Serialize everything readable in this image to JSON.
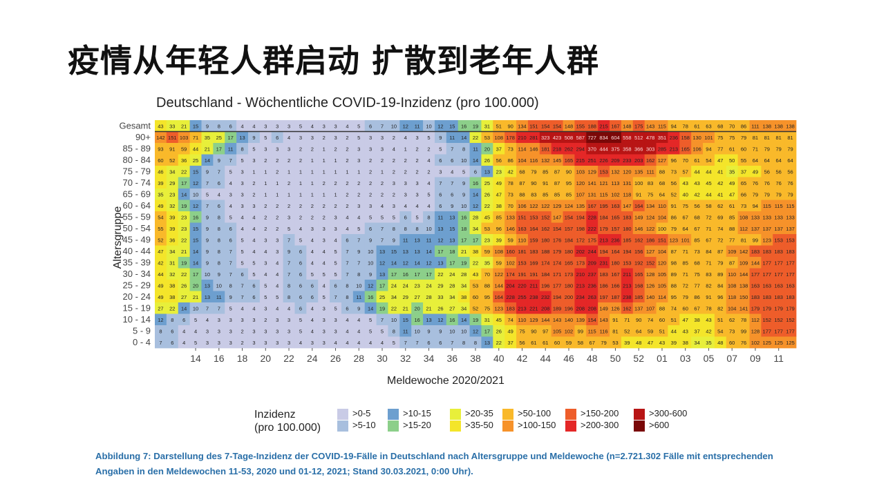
{
  "headline": "疫情从年轻人群启动 扩散到老年人群",
  "caption": "Abbildung 7: Darstellung des 7-Tage-Inzidenz der COVID-19-Fälle in Deutschland nach Altersgruppe und Meldewoche (n=2.721.302 Fälle mit entsprechenden Angaben in den Meldewochen 11-53, 2020 und 01-12, 2021; Stand 30.03.2021, 0:00 Uhr).",
  "legend": {
    "title_line1": "Inzidenz",
    "title_line2": "(pro 100.000)",
    "items": [
      {
        "label": ">0-5",
        "color": "#c9cbe6"
      },
      {
        "label": ">5-10",
        "color": "#a8bfde"
      },
      {
        "label": ">10-15",
        "color": "#6d9fcf"
      },
      {
        "label": ">15-20",
        "color": "#8ccf8a"
      },
      {
        "label": ">20-35",
        "color": "#e8ef3a"
      },
      {
        "label": ">35-50",
        "color": "#f4e52a"
      },
      {
        "label": ">50-100",
        "color": "#f9b92a"
      },
      {
        "label": ">100-150",
        "color": "#f6922a"
      },
      {
        "label": ">150-200",
        "color": "#ee5d2a"
      },
      {
        "label": ">200-300",
        "color": "#e42727"
      },
      {
        "label": ">300-600",
        "color": "#b81515"
      },
      {
        "label": ">600",
        "color": "#7a0808"
      }
    ]
  },
  "chart_data": {
    "type": "heatmap",
    "title": "Deutschland - Wöchentliche COVID-19-Inzidenz (pro 100.000)",
    "xlabel": "Meldewoche 2020/2021",
    "ylabel": "Altersgruppe",
    "x_tick_labels": [
      "14",
      "16",
      "18",
      "20",
      "22",
      "24",
      "26",
      "28",
      "30",
      "32",
      "34",
      "36",
      "38",
      "40",
      "42",
      "44",
      "46",
      "48",
      "50",
      "52",
      "01",
      "03",
      "05",
      "07",
      "09",
      "11"
    ],
    "weeks": [
      "11",
      "12",
      "13",
      "14",
      "15",
      "16",
      "17",
      "18",
      "19",
      "20",
      "21",
      "22",
      "23",
      "24",
      "25",
      "26",
      "27",
      "28",
      "29",
      "30",
      "31",
      "32",
      "33",
      "34",
      "35",
      "36",
      "37",
      "38",
      "39",
      "40",
      "41",
      "42",
      "43",
      "44",
      "45",
      "46",
      "47",
      "48",
      "49",
      "50",
      "51",
      "52",
      "53",
      "01",
      "02",
      "03",
      "04",
      "05",
      "06",
      "07",
      "08",
      "09",
      "10",
      "11",
      "12"
    ],
    "rows": [
      {
        "label": "Gesamt",
        "values": [
          43,
          33,
          21,
          15,
          9,
          8,
          6,
          4,
          4,
          3,
          3,
          3,
          5,
          4,
          3,
          3,
          4,
          5,
          6,
          7,
          10,
          12,
          11,
          10,
          12,
          15,
          16,
          19,
          31,
          51,
          90,
          134,
          151,
          154,
          154,
          148,
          155,
          188,
          215,
          167,
          148,
          175,
          143,
          115,
          94,
          78,
          61,
          63,
          68,
          70,
          86,
          111,
          138,
          138,
          138
        ]
      },
      {
        "label": "90+",
        "values": [
          142,
          151,
          103,
          71,
          35,
          25,
          17,
          13,
          9,
          5,
          6,
          4,
          3,
          3,
          2,
          3,
          2,
          5,
          3,
          3,
          2,
          4,
          3,
          5,
          9,
          11,
          14,
          22,
          53,
          108,
          178,
          210,
          281,
          323,
          423,
          508,
          587,
          727,
          834,
          604,
          558,
          512,
          478,
          351,
          236,
          158,
          130,
          101,
          75,
          75,
          79,
          81,
          81,
          81,
          81
        ]
      },
      {
        "label": "85 - 89",
        "values": [
          93,
          91,
          59,
          44,
          21,
          17,
          11,
          8,
          5,
          3,
          3,
          3,
          2,
          2,
          1,
          2,
          2,
          3,
          3,
          3,
          4,
          1,
          2,
          2,
          5,
          7,
          8,
          11,
          20,
          37,
          73,
          114,
          146,
          181,
          218,
          262,
          294,
          370,
          444,
          375,
          358,
          366,
          303,
          285,
          213,
          165,
          106,
          94,
          77,
          61,
          60,
          71,
          79,
          79,
          79
        ]
      },
      {
        "label": "80 - 84",
        "values": [
          60,
          52,
          36,
          25,
          14,
          9,
          7,
          5,
          3,
          2,
          2,
          2,
          2,
          1,
          1,
          1,
          2,
          3,
          2,
          2,
          2,
          2,
          2,
          4,
          6,
          6,
          10,
          14,
          26,
          56,
          86,
          104,
          116,
          132,
          145,
          165,
          215,
          251,
          226,
          209,
          233,
          203,
          162,
          127,
          96,
          70,
          61,
          54,
          47,
          50,
          55,
          64,
          64,
          64,
          64
        ]
      },
      {
        "label": "75 - 79",
        "values": [
          46,
          34,
          22,
          15,
          9,
          7,
          5,
          3,
          1,
          1,
          2,
          1,
          1,
          1,
          1,
          1,
          1,
          1,
          2,
          1,
          2,
          2,
          2,
          2,
          3,
          4,
          5,
          6,
          13,
          23,
          42,
          68,
          79,
          85,
          87,
          90,
          103,
          129,
          153,
          132,
          120,
          135,
          111,
          88,
          73,
          57,
          44,
          44,
          41,
          35,
          37,
          49,
          56,
          56,
          56
        ]
      },
      {
        "label": "70 - 74",
        "values": [
          39,
          29,
          17,
          12,
          7,
          6,
          4,
          3,
          2,
          1,
          1,
          2,
          1,
          1,
          2,
          2,
          2,
          2,
          2,
          2,
          3,
          3,
          3,
          4,
          7,
          7,
          9,
          16,
          25,
          49,
          78,
          87,
          90,
          91,
          87,
          95,
          120,
          141,
          121,
          113,
          131,
          100,
          83,
          68,
          56,
          43,
          43,
          45,
          42,
          49,
          65,
          76,
          76,
          76,
          76
        ]
      },
      {
        "label": "65 - 69",
        "values": [
          35,
          23,
          14,
          10,
          5,
          4,
          3,
          3,
          2,
          1,
          1,
          1,
          1,
          1,
          1,
          1,
          2,
          2,
          2,
          2,
          2,
          3,
          3,
          5,
          6,
          6,
          9,
          14,
          26,
          47,
          73,
          88,
          83,
          85,
          85,
          85,
          107,
          131,
          115,
          102,
          118,
          91,
          75,
          64,
          52,
          40,
          42,
          44,
          41,
          47,
          66,
          79,
          79,
          79,
          79
        ]
      },
      {
        "label": "60 - 64",
        "values": [
          49,
          32,
          19,
          12,
          7,
          6,
          4,
          3,
          3,
          2,
          2,
          2,
          2,
          2,
          2,
          2,
          2,
          3,
          3,
          4,
          3,
          4,
          4,
          4,
          6,
          9,
          10,
          12,
          22,
          38,
          70,
          106,
          122,
          122,
          129,
          124,
          135,
          167,
          195,
          163,
          147,
          164,
          134,
          110,
          91,
          75,
          56,
          58,
          62,
          61,
          73,
          94,
          115,
          115,
          115
        ]
      },
      {
        "label": "55 - 59",
        "values": [
          54,
          39,
          23,
          16,
          9,
          8,
          5,
          4,
          4,
          2,
          2,
          3,
          2,
          2,
          2,
          3,
          4,
          4,
          5,
          5,
          5,
          6,
          5,
          8,
          11,
          13,
          16,
          28,
          45,
          85,
          133,
          151,
          153,
          152,
          147,
          154,
          194,
          228,
          184,
          165,
          183,
          149,
          124,
          104,
          86,
          67,
          68,
          72,
          69,
          85,
          108,
          133,
          133,
          133,
          133
        ]
      },
      {
        "label": "50 - 54",
        "values": [
          55,
          39,
          23,
          15,
          9,
          8,
          6,
          4,
          4,
          2,
          2,
          5,
          4,
          3,
          3,
          3,
          4,
          5,
          6,
          7,
          8,
          8,
          8,
          10,
          13,
          15,
          18,
          34,
          53,
          96,
          146,
          163,
          164,
          162,
          154,
          157,
          198,
          222,
          179,
          157,
          180,
          146,
          122,
          100,
          79,
          64,
          67,
          71,
          74,
          88,
          112,
          137,
          137,
          137,
          137
        ]
      },
      {
        "label": "45 - 49",
        "values": [
          52,
          36,
          22,
          15,
          9,
          8,
          6,
          5,
          4,
          3,
          3,
          7,
          5,
          4,
          3,
          4,
          6,
          7,
          9,
          7,
          9,
          11,
          13,
          11,
          12,
          13,
          17,
          17,
          23,
          39,
          59,
          110,
          159,
          180,
          176,
          184,
          172,
          175,
          213,
          236,
          185,
          162,
          186,
          151,
          123,
          101,
          85,
          67,
          72,
          77,
          81,
          99,
          123,
          153,
          153
        ]
      },
      {
        "label": "40 - 44",
        "values": [
          47,
          34,
          21,
          14,
          9,
          8,
          7,
          5,
          4,
          4,
          3,
          9,
          6,
          4,
          4,
          5,
          7,
          9,
          10,
          13,
          15,
          13,
          13,
          14,
          17,
          18,
          21,
          38,
          59,
          108,
          160,
          181,
          183,
          188,
          179,
          180,
          202,
          244,
          194,
          164,
          194,
          156,
          127,
          104,
          87,
          71,
          73,
          84,
          87,
          109,
          142,
          183,
          183,
          183,
          183
        ]
      },
      {
        "label": "35 - 39",
        "values": [
          42,
          31,
          19,
          14,
          9,
          8,
          7,
          5,
          5,
          3,
          4,
          7,
          6,
          4,
          4,
          5,
          7,
          7,
          10,
          12,
          14,
          12,
          14,
          12,
          13,
          17,
          19,
          22,
          35,
          59,
          102,
          153,
          169,
          174,
          174,
          165,
          173,
          209,
          231,
          180,
          153,
          192,
          152,
          120,
          98,
          85,
          68,
          71,
          79,
          87,
          109,
          144,
          177,
          177,
          177
        ]
      },
      {
        "label": "30 - 34",
        "values": [
          44,
          32,
          22,
          17,
          10,
          9,
          7,
          6,
          5,
          4,
          4,
          7,
          6,
          5,
          5,
          5,
          7,
          8,
          9,
          13,
          17,
          16,
          17,
          17,
          22,
          24,
          28,
          43,
          70,
          122,
          174,
          191,
          191,
          184,
          171,
          173,
          210,
          237,
          183,
          167,
          211,
          165,
          128,
          105,
          89,
          71,
          75,
          83,
          89,
          110,
          144,
          177,
          177,
          177,
          177
        ]
      },
      {
        "label": "25 - 29",
        "values": [
          49,
          38,
          26,
          20,
          13,
          10,
          8,
          7,
          6,
          5,
          4,
          8,
          6,
          6,
          4,
          6,
          8,
          10,
          12,
          17,
          24,
          24,
          23,
          24,
          29,
          28,
          34,
          53,
          88,
          144,
          204,
          220,
          211,
          196,
          177,
          180,
          213,
          236,
          186,
          166,
          213,
          168,
          126,
          105,
          88,
          72,
          77,
          82,
          84,
          108,
          138,
          163,
          163,
          163,
          163
        ]
      },
      {
        "label": "20 - 24",
        "values": [
          49,
          38,
          27,
          21,
          13,
          11,
          9,
          7,
          6,
          5,
          5,
          8,
          6,
          6,
          5,
          7,
          8,
          11,
          16,
          25,
          34,
          29,
          27,
          28,
          33,
          34,
          38,
          60,
          95,
          164,
          228,
          255,
          238,
          232,
          194,
          200,
          234,
          263,
          197,
          187,
          238,
          185,
          140,
          114,
          95,
          79,
          86,
          91,
          96,
          118,
          150,
          183,
          183,
          183,
          183
        ]
      },
      {
        "label": "15 - 19",
        "values": [
          27,
          22,
          14,
          10,
          7,
          7,
          5,
          4,
          4,
          3,
          4,
          4,
          6,
          4,
          3,
          5,
          6,
          9,
          14,
          19,
          22,
          21,
          20,
          21,
          26,
          27,
          34,
          52,
          75,
          123,
          183,
          213,
          221,
          208,
          189,
          196,
          208,
          208,
          149,
          126,
          162,
          137,
          107,
          88,
          74,
          60,
          67,
          78,
          82,
          104,
          141,
          179,
          179,
          179,
          179
        ]
      },
      {
        "label": "10 - 14",
        "values": [
          12,
          8,
          6,
          5,
          4,
          3,
          3,
          3,
          3,
          2,
          3,
          3,
          5,
          4,
          3,
          3,
          4,
          4,
          5,
          7,
          10,
          15,
          16,
          13,
          12,
          16,
          14,
          19,
          31,
          45,
          74,
          110,
          129,
          144,
          143,
          140,
          139,
          154,
          143,
          91,
          71,
          90,
          74,
          60,
          51,
          47,
          38,
          43,
          51,
          62,
          78,
          112,
          152,
          152,
          152
        ]
      },
      {
        "label": "5 - 9",
        "values": [
          8,
          6,
          4,
          4,
          3,
          3,
          3,
          2,
          3,
          3,
          3,
          3,
          5,
          4,
          3,
          3,
          4,
          4,
          5,
          5,
          8,
          11,
          10,
          9,
          9,
          10,
          10,
          12,
          17,
          26,
          49,
          75,
          90,
          97,
          105,
          102,
          99,
          115,
          116,
          81,
          52,
          64,
          59,
          51,
          44,
          43,
          37,
          42,
          54,
          73,
          99,
          128,
          177,
          177,
          177
        ]
      },
      {
        "label": "0 - 4",
        "values": [
          7,
          6,
          4,
          5,
          3,
          3,
          3,
          2,
          3,
          3,
          3,
          3,
          4,
          3,
          3,
          4,
          4,
          4,
          4,
          4,
          5,
          7,
          7,
          6,
          6,
          7,
          8,
          8,
          13,
          22,
          37,
          56,
          61,
          61,
          60,
          59,
          58,
          67,
          79,
          53,
          39,
          48,
          47,
          43,
          39,
          38,
          34,
          35,
          48,
          60,
          76,
          102,
          125,
          125,
          125
        ]
      }
    ]
  }
}
